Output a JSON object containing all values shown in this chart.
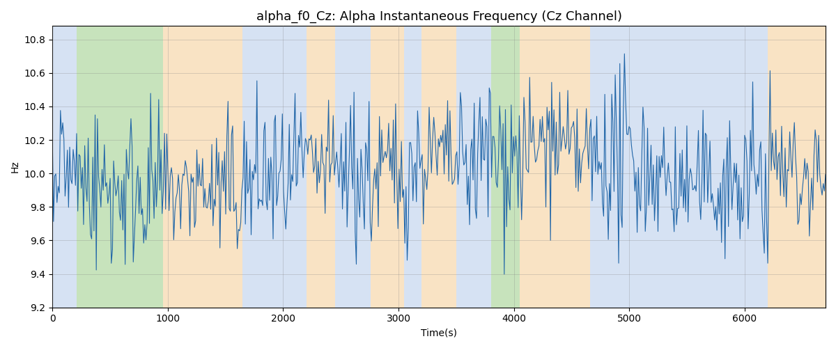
{
  "title": "alpha_f0_Cz: Alpha Instantaneous Frequency (Cz Channel)",
  "xlabel": "Time(s)",
  "ylabel": "Hz",
  "ylim": [
    9.2,
    10.88
  ],
  "xlim": [
    0,
    6700
  ],
  "line_color": "#2166a8",
  "line_width": 0.8,
  "bands": [
    {
      "start": 0,
      "end": 210,
      "color": "#aec6e8",
      "alpha": 0.5
    },
    {
      "start": 210,
      "end": 960,
      "color": "#90c97a",
      "alpha": 0.5
    },
    {
      "start": 960,
      "end": 1650,
      "color": "#f5c98a",
      "alpha": 0.5
    },
    {
      "start": 1650,
      "end": 2200,
      "color": "#aec6e8",
      "alpha": 0.5
    },
    {
      "start": 2200,
      "end": 2450,
      "color": "#f5c98a",
      "alpha": 0.5
    },
    {
      "start": 2450,
      "end": 2760,
      "color": "#aec6e8",
      "alpha": 0.5
    },
    {
      "start": 2760,
      "end": 3050,
      "color": "#f5c98a",
      "alpha": 0.5
    },
    {
      "start": 3050,
      "end": 3200,
      "color": "#aec6e8",
      "alpha": 0.5
    },
    {
      "start": 3200,
      "end": 3500,
      "color": "#f5c98a",
      "alpha": 0.5
    },
    {
      "start": 3500,
      "end": 3800,
      "color": "#aec6e8",
      "alpha": 0.5
    },
    {
      "start": 3800,
      "end": 4050,
      "color": "#90c97a",
      "alpha": 0.5
    },
    {
      "start": 4050,
      "end": 4660,
      "color": "#f5c98a",
      "alpha": 0.5
    },
    {
      "start": 4660,
      "end": 6200,
      "color": "#aec6e8",
      "alpha": 0.5
    },
    {
      "start": 6200,
      "end": 6700,
      "color": "#f5c98a",
      "alpha": 0.5
    }
  ],
  "seed": 42,
  "n_points": 670,
  "base_freq": 10.0,
  "title_fontsize": 13,
  "xticks": [
    0,
    1000,
    2000,
    3000,
    4000,
    5000,
    6000
  ],
  "yticks": [
    9.2,
    9.4,
    9.6,
    9.8,
    10.0,
    10.2,
    10.4,
    10.6,
    10.8
  ]
}
